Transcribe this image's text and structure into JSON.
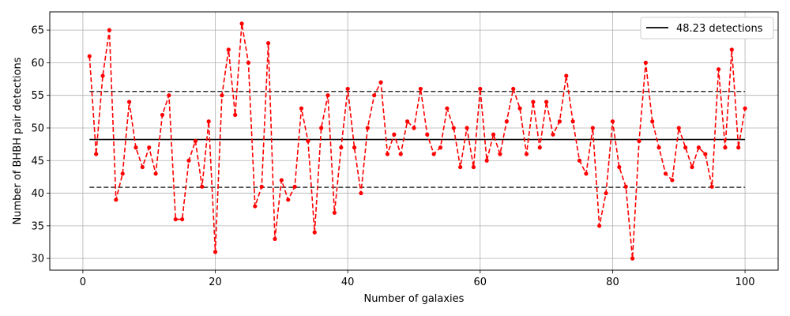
{
  "chart_data": {
    "type": "line",
    "title": "",
    "xlabel": "Number of galaxies",
    "ylabel": "Number of BHBH pair detections",
    "xlim": [
      -5,
      105
    ],
    "ylim": [
      28.2,
      67.8
    ],
    "xticks": [
      0,
      20,
      40,
      60,
      80,
      100
    ],
    "yticks": [
      30,
      35,
      40,
      45,
      50,
      55,
      60,
      65
    ],
    "grid": true,
    "legend_position": "top-right",
    "series": [
      {
        "name": "",
        "style": "dashed-line-with-dots",
        "color": "#ff0000",
        "x": [
          1,
          2,
          3,
          4,
          5,
          6,
          7,
          8,
          9,
          10,
          11,
          12,
          13,
          14,
          15,
          16,
          17,
          18,
          19,
          20,
          21,
          22,
          23,
          24,
          25,
          26,
          27,
          28,
          29,
          30,
          31,
          32,
          33,
          34,
          35,
          36,
          37,
          38,
          39,
          40,
          41,
          42,
          43,
          44,
          45,
          46,
          47,
          48,
          49,
          50,
          51,
          52,
          53,
          54,
          55,
          56,
          57,
          58,
          59,
          60,
          61,
          62,
          63,
          64,
          65,
          66,
          67,
          68,
          69,
          70,
          71,
          72,
          73,
          74,
          75,
          76,
          77,
          78,
          79,
          80,
          81,
          82,
          83,
          84,
          85,
          86,
          87,
          88,
          89,
          90,
          91,
          92,
          93,
          94,
          95,
          96,
          97,
          98,
          99,
          100
        ],
        "y": [
          61,
          46,
          58,
          65,
          39,
          43,
          54,
          47,
          44,
          47,
          43,
          52,
          55,
          36,
          36,
          45,
          48,
          41,
          51,
          31,
          55,
          62,
          52,
          66,
          60,
          38,
          41,
          63,
          33,
          42,
          39,
          41,
          53,
          48,
          34,
          50,
          55,
          37,
          47,
          56,
          47,
          40,
          50,
          55,
          57,
          46,
          49,
          46,
          51,
          50,
          56,
          49,
          46,
          47,
          53,
          50,
          44,
          50,
          44,
          56,
          45,
          49,
          46,
          51,
          56,
          53,
          46,
          54,
          47,
          54,
          49,
          51,
          58,
          51,
          45,
          43,
          50,
          35,
          40,
          51,
          44,
          41,
          30,
          48,
          60,
          51,
          47,
          43,
          42,
          50,
          47,
          44,
          47,
          46,
          41,
          59,
          47,
          62,
          47,
          53
        ]
      }
    ],
    "reference_lines": [
      {
        "name": "48.23 detections",
        "value": 48.23,
        "style": "solid",
        "color": "#000000",
        "x_range": [
          1,
          100
        ]
      },
      {
        "name": "",
        "value": 55.6,
        "style": "dashed",
        "color": "#333333",
        "x_range": [
          1,
          100
        ]
      },
      {
        "name": "",
        "value": 40.9,
        "style": "dashed",
        "color": "#333333",
        "x_range": [
          1,
          100
        ]
      }
    ],
    "legend": [
      {
        "label": "48.23 detections",
        "color": "#000000",
        "style": "solid"
      }
    ]
  }
}
